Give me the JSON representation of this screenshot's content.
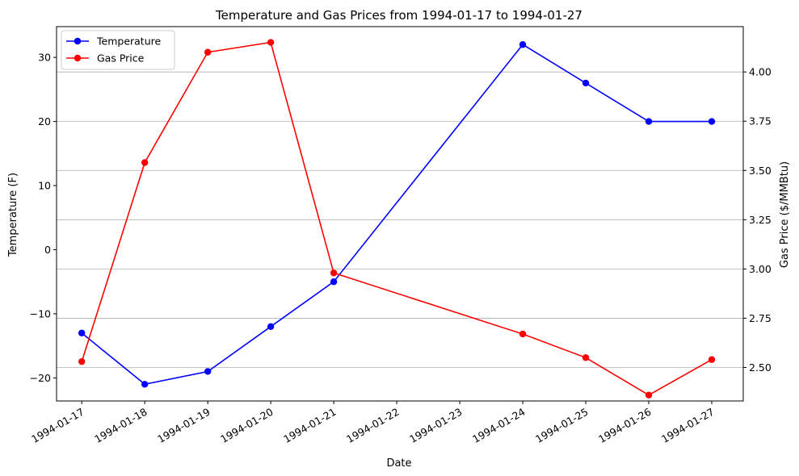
{
  "chart_data": {
    "type": "line",
    "title": "Temperature and Gas Prices from 1994-01-17 to 1994-01-27",
    "xlabel": "Date",
    "ylabel_left": "Temperature (F)",
    "ylabel_right": "Gas Price ($/MMBtu)",
    "x_ticks": [
      "1994-01-17",
      "1994-01-18",
      "1994-01-19",
      "1994-01-20",
      "1994-01-21",
      "1994-01-22",
      "1994-01-23",
      "1994-01-24",
      "1994-01-25",
      "1994-01-26",
      "1994-01-27"
    ],
    "x_range": [
      "1994-01-16.6",
      "1994-01-27.5"
    ],
    "y_left_ticks": [
      -20,
      -10,
      0,
      10,
      20,
      30
    ],
    "y_left_range": [
      -23.6,
      34.8
    ],
    "y_right_ticks": [
      "2.50",
      "2.75",
      "3.00",
      "3.25",
      "3.50",
      "3.75",
      "4.00"
    ],
    "y_right_range": [
      2.33,
      4.23
    ],
    "grid": "right-axis horizontal",
    "legend_position": "upper-left",
    "series": [
      {
        "name": "Temperature",
        "axis": "left",
        "color": "#0000ff",
        "x": [
          "1994-01-17",
          "1994-01-18",
          "1994-01-19",
          "1994-01-20",
          "1994-01-21",
          "1994-01-24",
          "1994-01-25",
          "1994-01-26",
          "1994-01-27"
        ],
        "values": [
          -13,
          -21,
          -19,
          -12,
          -5,
          32,
          26,
          20,
          20
        ]
      },
      {
        "name": "Gas Price",
        "axis": "right",
        "color": "#ff0000",
        "x": [
          "1994-01-17",
          "1994-01-18",
          "1994-01-19",
          "1994-01-20",
          "1994-01-21",
          "1994-01-24",
          "1994-01-25",
          "1994-01-26",
          "1994-01-27"
        ],
        "values": [
          2.53,
          3.54,
          4.1,
          4.15,
          2.98,
          2.67,
          2.55,
          2.36,
          2.54
        ]
      }
    ]
  }
}
